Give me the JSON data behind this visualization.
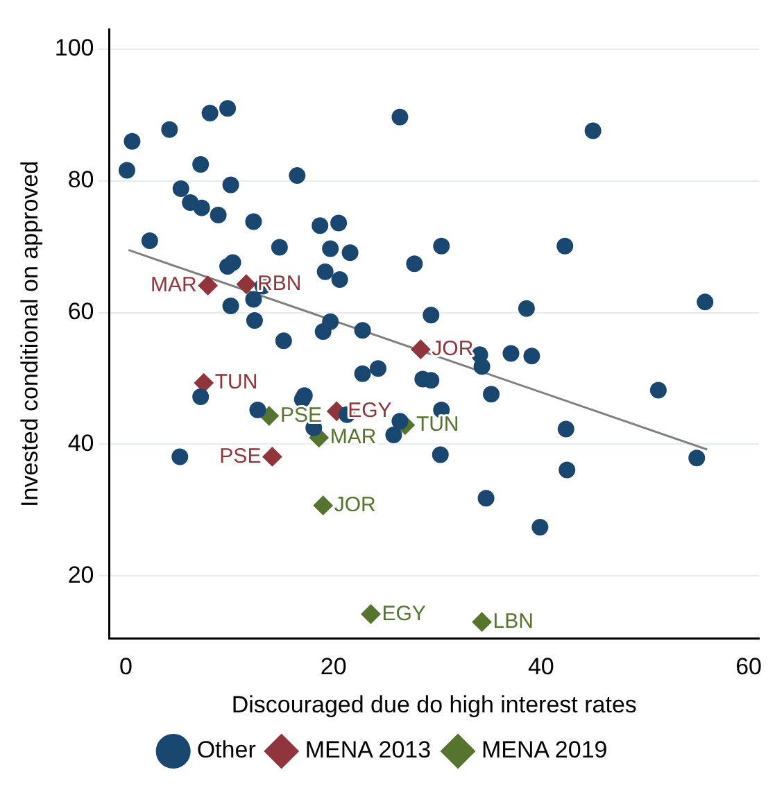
{
  "chart_data": {
    "type": "scatter",
    "xlabel": "Discouraged due do high interest rates",
    "ylabel": "Invested conditional on approved",
    "xlim": [
      -1.6,
      61
    ],
    "ylim": [
      10.5,
      103
    ],
    "xticks": [
      0,
      20,
      40,
      60
    ],
    "yticks": [
      20,
      40,
      60,
      80,
      100
    ],
    "grid": "y",
    "legend": "bottom",
    "series": [
      {
        "name": "Other",
        "color": "#1a476f",
        "marker": "circle",
        "x": [
          0.1,
          0.6,
          2.3,
          4.2,
          8.1,
          9.8,
          5.3,
          7.2,
          6.2,
          7.3,
          8.9,
          10.1,
          12.3,
          16.5,
          26.4,
          14.8,
          18.7,
          20.5,
          19.7,
          21.6,
          19.2,
          20.6,
          9.8,
          10.3,
          10.1,
          12.4,
          12.3,
          13.2,
          15.2,
          19,
          19.7,
          22.8,
          27.8,
          24.3,
          45,
          30.4,
          42.3,
          29.4,
          38.6,
          55.8,
          34.1,
          37.1,
          39.1,
          34.3,
          28.6,
          29.4,
          35.2,
          51.3,
          30.4,
          42.4,
          30.3,
          42.5,
          34.7,
          39.9,
          55,
          22.8,
          7.2,
          17.2,
          17,
          12.7,
          18.1,
          21.3,
          25.8,
          26.4,
          5.2
        ],
        "values": [
          81.6,
          86,
          70.9,
          87.8,
          90.3,
          91,
          78.8,
          82.5,
          76.7,
          75.9,
          74.8,
          79.4,
          73.8,
          80.8,
          89.7,
          69.9,
          73.2,
          73.6,
          69.7,
          69.1,
          66.2,
          65,
          67,
          67.6,
          61,
          58.8,
          62,
          64,
          55.7,
          57.1,
          58.6,
          57.3,
          67.4,
          51.5,
          87.6,
          70.1,
          70.1,
          59.6,
          60.6,
          61.6,
          53.6,
          53.8,
          53.4,
          51.8,
          49.9,
          49.7,
          47.6,
          48.2,
          45.2,
          42.3,
          38.4,
          36.1,
          31.8,
          27.4,
          37.9,
          50.7,
          47.2,
          47.4,
          46.8,
          45.2,
          42.5,
          44.5,
          41.4,
          43.5,
          38.1
        ]
      },
      {
        "name": "MENA 2013",
        "color": "#90353b",
        "marker": "diamond",
        "x": [
          7.9,
          11.6,
          7.5,
          20.3,
          14.1,
          28.4
        ],
        "values": [
          64.1,
          64.3,
          49.3,
          45,
          38.1,
          54.4
        ],
        "value_labels": [
          "MAR",
          "RBN",
          "TUN",
          "EGY",
          "PSE",
          "JOR"
        ]
      },
      {
        "name": "MENA 2019",
        "color": "#55752f",
        "marker": "diamond",
        "x": [
          13.8,
          18.6,
          19,
          23.6,
          34.3,
          26.9
        ],
        "values": [
          44.3,
          41,
          30.7,
          14.2,
          13,
          42.9
        ],
        "value_labels": [
          "PSE",
          "MAR",
          "JOR",
          "EGY",
          "LBN",
          "TUN"
        ]
      },
      {
        "type": "line",
        "color": "#808080",
        "marker": "none",
        "x": [
          0.25,
          56
        ],
        "values": [
          69.5,
          39.2
        ]
      }
    ]
  }
}
